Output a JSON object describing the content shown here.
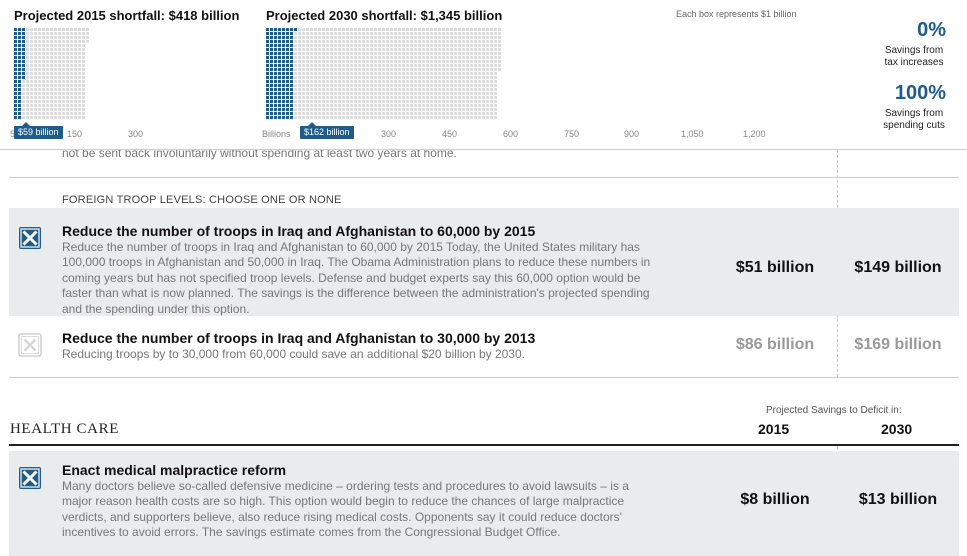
{
  "header": {
    "shortfall_2015": "Projected 2015 shortfall: $418 billion",
    "shortfall_2030": "Projected 2030 shortfall: $1,345 billion",
    "box_note": "Each box represents $1 billion",
    "grid_2015": {
      "total_billion": 418,
      "filled_billion": 59
    },
    "grid_2030": {
      "total_billion": 1345,
      "filled_billion": 162
    },
    "ticks_2015": [
      "150",
      "300"
    ],
    "ticks_2030": [
      "Billions",
      "300",
      "450",
      "600",
      "750",
      "900",
      "1,050",
      "1,200"
    ],
    "marker_2015": "$59 billion",
    "marker_2030": "$162 billion",
    "tax_pct": "0%",
    "tax_label_line1": "Savings from",
    "tax_label_line2": "tax increases",
    "spend_pct": "100%",
    "spend_label_line1": "Savings from",
    "spend_label_line2": "spending cuts",
    "accent_color": "#1f5c8c",
    "empty_box_color": "#dedede"
  },
  "cut_off_text": "not be sent back involuntarily without spending at least two years at home.",
  "troops": {
    "heading": "FOREIGN TROOP LEVELS: CHOOSE ONE OR NONE",
    "options": [
      {
        "title": "Reduce the number of troops in Iraq and Afghanistan to 60,000 by 2015",
        "desc_lines": [
          "Reduce the number of troops in Iraq and Afghanistan to 60,000 by 2015 Today, the United States military has",
          "100,000 troops in Afghanistan and 50,000 in Iraq. The Obama Administration plans to reduce these numbers in",
          "coming years but has not specified troop levels. Defense and budget experts say this 60,000 option would be",
          "faster than what is now planned. The savings is the difference between the administration's projected spending",
          "and the spending under this option."
        ],
        "v2015": "$51 billion",
        "v2030": "$149 billion",
        "selected": true
      },
      {
        "title": "Reduce the number of troops in Iraq and Afghanistan to 30,000 by 2013",
        "desc_lines": [
          "Reducing troops by to 30,000 from 60,000 could save an additional $20 billion by 2030."
        ],
        "v2015": "$86 billion",
        "v2030": "$169 billion",
        "selected": false
      }
    ]
  },
  "health": {
    "title": "HEALTH CARE",
    "proj_label": "Projected Savings to Deficit in:",
    "year1": "2015",
    "year2": "2030",
    "options": [
      {
        "title": "Enact medical malpractice reform",
        "desc_lines": [
          "Many doctors believe so-called defensive medicine – ordering tests and procedures to avoid lawsuits – is a",
          "major reason health costs are so high. This option would begin to reduce the chances of large malpractice",
          "verdicts, and supporters believe, also reduce rising medical costs. Opponents say it could reduce doctors'",
          "incentives to avoid errors. The savings estimate comes from the Congressional Budget Office."
        ],
        "v2015": "$8 billion",
        "v2030": "$13 billion",
        "selected": true
      }
    ]
  }
}
